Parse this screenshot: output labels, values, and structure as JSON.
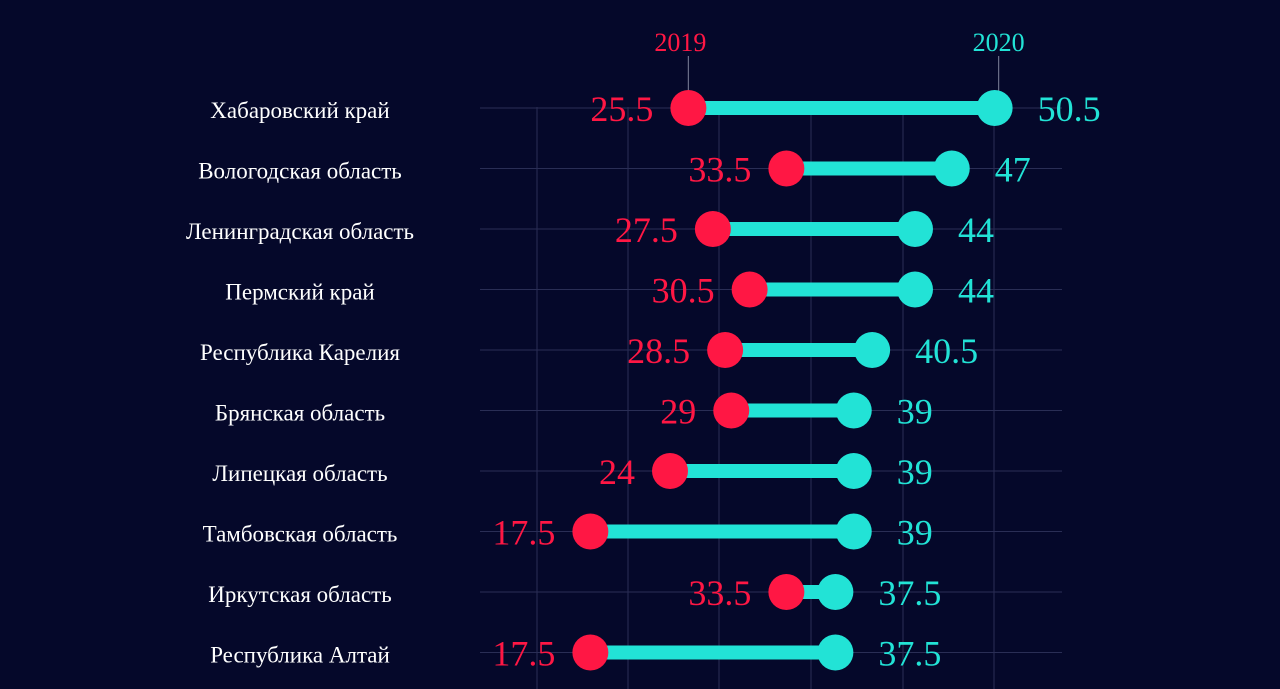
{
  "chart_data": {
    "type": "dumbbell",
    "series": [
      {
        "name": "2019",
        "color": "#ff1744"
      },
      {
        "name": "2020",
        "color": "#22e3d6"
      }
    ],
    "rows": [
      {
        "label": "Хабаровский край",
        "v2019": 25.5,
        "v2020": 50.5
      },
      {
        "label": "Вологодская область",
        "v2019": 33.5,
        "v2020": 47
      },
      {
        "label": "Ленинградская область",
        "v2019": 27.5,
        "v2020": 44
      },
      {
        "label": "Пермский край",
        "v2019": 30.5,
        "v2020": 44
      },
      {
        "label": "Республика Карелия",
        "v2019": 28.5,
        "v2020": 40.5
      },
      {
        "label": "Брянская область",
        "v2019": 29,
        "v2020": 39
      },
      {
        "label": "Липецкая область",
        "v2019": 24,
        "v2020": 39
      },
      {
        "label": "Тамбовская область",
        "v2019": 17.5,
        "v2020": 39
      },
      {
        "label": "Иркутская область",
        "v2019": 33.5,
        "v2020": 37.5
      },
      {
        "label": "Республика Алтай",
        "v2019": 17.5,
        "v2020": 37.5
      }
    ],
    "xlim": [
      0,
      55
    ],
    "grid": true,
    "legend": "top (labels above first row)"
  }
}
